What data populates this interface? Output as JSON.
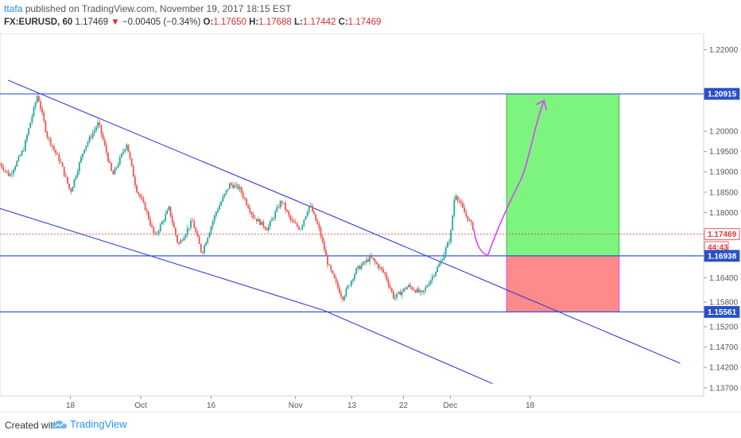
{
  "header": {
    "author": "ttafa",
    "published_text": " published on TradingView.com, November 19, 2017 18:15 EST",
    "symbol": "FX:EURUSD, 60",
    "last": "1.17469",
    "change": "−0.00405 (−0.34%)",
    "o_label": "O:",
    "o_value": "1.17650",
    "h_label": "H:",
    "h_value": "1.17688",
    "l_label": "L:",
    "l_value": "1.17442",
    "c_label": "C:",
    "c_value": "1.17469"
  },
  "footer": {
    "created_with": "Created with",
    "brand": "TradingView"
  },
  "colors": {
    "channel": "#3b3bd6",
    "level": "#2f5fd0",
    "up_candle": "#26a69a",
    "down_candle": "#ef5350",
    "projection": "#e040fb",
    "target_zone": "#7df47d",
    "stop_zone": "#ff8a8a",
    "price_tag": "#2a50c8",
    "last_price": "#e53935"
  },
  "chart_data": {
    "type": "candlestick",
    "symbol": "FX:EURUSD",
    "timeframe": "60",
    "x_ticks": [
      "18",
      "Oct",
      "16",
      "Nov",
      "13",
      "22",
      "Dec",
      "18"
    ],
    "y_ticks": [
      "1.22000",
      "1.20000",
      "1.19500",
      "1.19000",
      "1.18500",
      "1.18000",
      "1.16400",
      "1.15800",
      "1.15200",
      "1.14700",
      "1.14200",
      "1.13700"
    ],
    "ylim": [
      1.135,
      1.224
    ],
    "price_labels": [
      {
        "label": "1.20915",
        "value": 1.20915,
        "kind": "level"
      },
      {
        "label": "1.17469",
        "value": 1.17469,
        "kind": "last"
      },
      {
        "label": "44:43",
        "value": 1.1715,
        "kind": "countdown"
      },
      {
        "label": "1.16938",
        "value": 1.16938,
        "kind": "level"
      },
      {
        "label": "1.15561",
        "value": 1.15561,
        "kind": "level"
      }
    ],
    "horizontal_levels": [
      1.20915,
      1.16938,
      1.15561
    ],
    "last_price": 1.17469,
    "price_path": [
      [
        0,
        1.192
      ],
      [
        2,
        1.189
      ],
      [
        5,
        1.1955
      ],
      [
        8,
        1.209
      ],
      [
        10,
        1.199
      ],
      [
        13,
        1.192
      ],
      [
        15,
        1.185
      ],
      [
        18,
        1.196
      ],
      [
        21,
        1.202
      ],
      [
        24,
        1.189
      ],
      [
        27,
        1.197
      ],
      [
        29,
        1.186
      ],
      [
        31,
        1.181
      ],
      [
        33,
        1.174
      ],
      [
        36,
        1.181
      ],
      [
        38,
        1.172
      ],
      [
        41,
        1.178
      ],
      [
        43,
        1.17
      ],
      [
        46,
        1.18
      ],
      [
        49,
        1.187
      ],
      [
        51,
        1.186
      ],
      [
        54,
        1.179
      ],
      [
        57,
        1.176
      ],
      [
        60,
        1.183
      ],
      [
        62,
        1.178
      ],
      [
        64,
        1.176
      ],
      [
        66,
        1.182
      ],
      [
        68,
        1.176
      ],
      [
        70,
        1.167
      ],
      [
        73,
        1.159
      ],
      [
        76,
        1.166
      ],
      [
        79,
        1.169
      ],
      [
        82,
        1.165
      ],
      [
        84,
        1.159
      ],
      [
        87,
        1.162
      ],
      [
        90,
        1.16
      ],
      [
        92,
        1.164
      ],
      [
        94,
        1.168
      ],
      [
        96,
        1.174
      ],
      [
        97,
        1.185
      ],
      [
        99,
        1.18
      ],
      [
        101,
        1.176
      ]
    ],
    "channel_lines": [
      {
        "name": "",
        "points": [
          [
            1.7,
            1.2125
          ],
          [
            63,
            1.183
          ],
          [
            145,
            1.143
          ]
        ]
      },
      {
        "name": "",
        "points": [
          [
            0,
            1.181
          ],
          [
            69,
            1.156
          ],
          [
            105,
            1.138
          ]
        ]
      }
    ],
    "projection_path": [
      [
        101,
        1.176
      ],
      [
        104,
        1.1695
      ],
      [
        111,
        1.188
      ],
      [
        116,
        1.2075
      ]
    ],
    "zones": [
      {
        "name": "target",
        "from": 1.16938,
        "to": 1.20915,
        "x_start": 108,
        "x_end": 132
      },
      {
        "name": "stop",
        "from": 1.15561,
        "to": 1.16938,
        "x_start": 108,
        "x_end": 132
      }
    ]
  }
}
